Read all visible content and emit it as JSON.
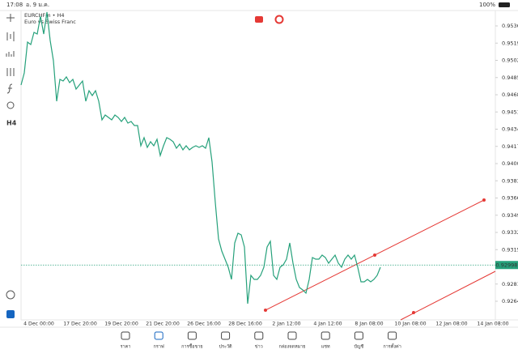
{
  "status_bar": {
    "time": "17:08",
    "date": "อ. 9 ม.ค.",
    "battery": "100%"
  },
  "toolbar": {
    "timeframe": "H4"
  },
  "tabs": [
    "ราคา",
    "กราฟ",
    "การซื้อขาย",
    "ประวัติ",
    "ข่าว",
    "กล่องจดหมาย",
    "แชท",
    "บัญชี",
    "การตั้งค่า"
  ],
  "chart_data": {
    "type": "line",
    "title": "EURCHFm • H4",
    "subtitle": "Euro vs Swiss Franc",
    "color": "#26a17b",
    "x_tick_labels": [
      "4 Dec 00:00",
      "17 Dec 20:00",
      "19 Dec 20:00",
      "21 Dec 20:00",
      "26 Dec 16:00",
      "28 Dec 16:00",
      "2 Jan 12:00",
      "4 Jan 12:00",
      "8 Jan 08:00",
      "10 Jan 08:00",
      "12 Jan 08:00",
      "14 Jan 08:00"
    ],
    "values": [
      0.94776,
      0.94896,
      0.952,
      0.95176,
      0.95296,
      0.9528,
      0.95456,
      0.9528,
      0.95496,
      0.95216,
      0.95016,
      0.94616,
      0.94832,
      0.94816,
      0.94856,
      0.948,
      0.94832,
      0.94736,
      0.94776,
      0.94816,
      0.94616,
      0.9472,
      0.94672,
      0.9472,
      0.94616,
      0.94432,
      0.9448,
      0.94456,
      0.94432,
      0.9448,
      0.94456,
      0.94416,
      0.94456,
      0.944,
      0.94416,
      0.94376,
      0.94376,
      0.94176,
      0.94256,
      0.9416,
      0.94216,
      0.94176,
      0.9424,
      0.9408,
      0.94176,
      0.94256,
      0.9424,
      0.94216,
      0.94152,
      0.94192,
      0.94136,
      0.94176,
      0.94136,
      0.9416,
      0.94176,
      0.9416,
      0.94176,
      0.94152,
      0.94256,
      0.94016,
      0.93616,
      0.93256,
      0.93136,
      0.93056,
      0.92976,
      0.92856,
      0.93216,
      0.93312,
      0.93296,
      0.93176,
      0.92616,
      0.92896,
      0.92856,
      0.92856,
      0.92896,
      0.92976,
      0.93176,
      0.93232,
      0.92896,
      0.92856,
      0.92976,
      0.93,
      0.93056,
      0.93216,
      0.93016,
      0.92856,
      0.92776,
      0.92752,
      0.9272,
      0.92856,
      0.93072,
      0.93056,
      0.93056,
      0.93096,
      0.93072,
      0.93016,
      0.93056,
      0.93096,
      0.93016,
      0.92976,
      0.93056,
      0.93096,
      0.93056,
      0.93096,
      0.92976,
      0.92832,
      0.92832,
      0.92856,
      0.92832,
      0.92856,
      0.92896,
      0.92976
    ],
    "current_price": 0.92998,
    "ylim": [
      0.92456,
      0.95504
    ],
    "yticks": [
      {
        "value": 0.9536,
        "label": "0.95360"
      },
      {
        "value": 0.9519,
        "label": "0.95190"
      },
      {
        "value": 0.9502,
        "label": "0.95020"
      },
      {
        "value": 0.9485,
        "label": "0.94850"
      },
      {
        "value": 0.9468,
        "label": "0.94680"
      },
      {
        "value": 0.9451,
        "label": "0.94510"
      },
      {
        "value": 0.9434,
        "label": "0.94340"
      },
      {
        "value": 0.9417,
        "label": "0.94170"
      },
      {
        "value": 0.94,
        "label": "0.94000"
      },
      {
        "value": 0.9383,
        "label": "0.93830"
      },
      {
        "value": 0.9366,
        "label": "0.93660"
      },
      {
        "value": 0.9349,
        "label": "0.93490"
      },
      {
        "value": 0.9332,
        "label": "0.93320"
      },
      {
        "value": 0.9315,
        "label": "0.93150"
      },
      {
        "value": 0.9281,
        "label": "0.92810"
      },
      {
        "value": 0.9264,
        "label": "0.92640"
      }
    ]
  }
}
